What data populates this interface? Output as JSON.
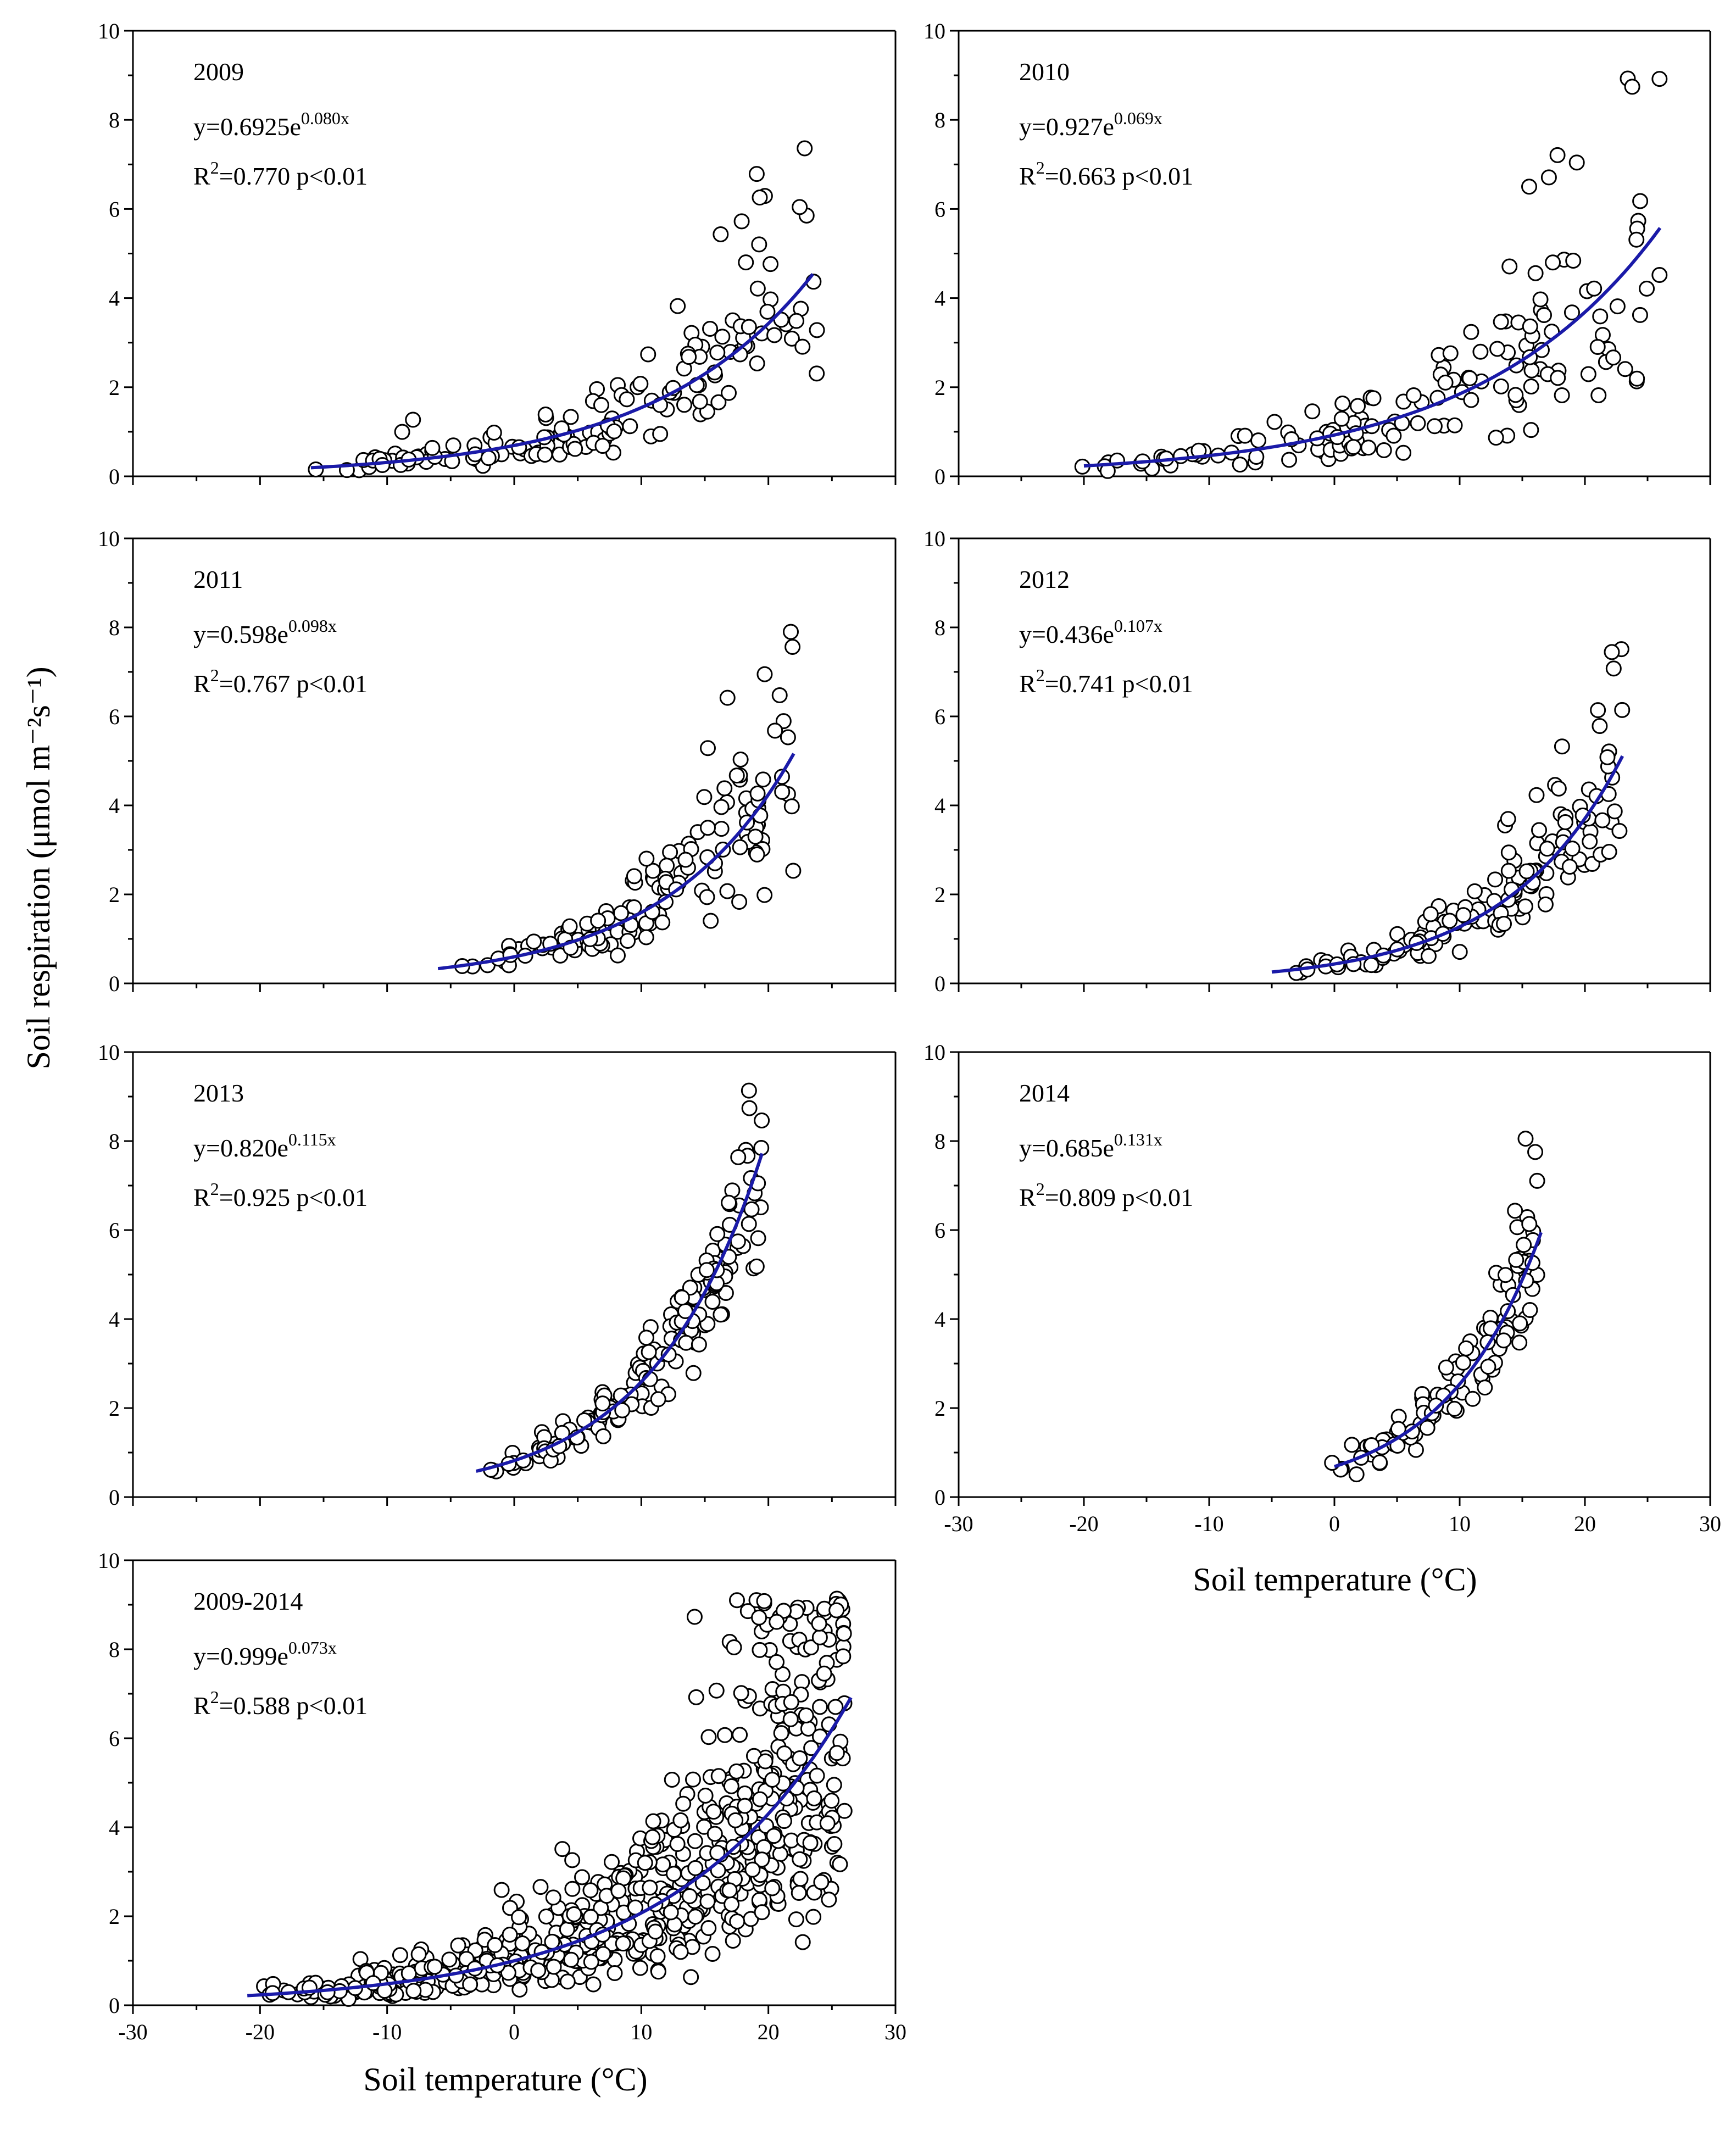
{
  "figure": {
    "ylabel": "Soil respiration (μmol m⁻²s⁻¹)",
    "xlabel_right": "Soil temperature (°C)",
    "xlabel_left": "Soil temperature  (°C)"
  },
  "chart_data": [
    {
      "type": "scatter",
      "year": "2009",
      "eq_base": "y=0.6925e",
      "eq_exp": "0.080x",
      "r2_text": "=0.770  p<0.01",
      "a": 0.6925,
      "b": 0.08,
      "xrange": [
        -16,
        23.5
      ],
      "xlim": [
        -30,
        30
      ],
      "ylim": [
        0,
        10
      ],
      "yticks": [
        "0",
        "2",
        "4",
        "6",
        "8",
        "10"
      ],
      "xticks": [
        "-30",
        "-20",
        "-10",
        "0",
        "10",
        "20",
        "30"
      ],
      "cloud": {
        "n": 150,
        "x_min": -16,
        "x_max": 24,
        "log_noise": 0.35,
        "seed": 11
      }
    },
    {
      "type": "scatter",
      "year": "2010",
      "eq_base": "y=0.927e",
      "eq_exp": "0.069x",
      "r2_text": "=0.663  p<0.01",
      "a": 0.927,
      "b": 0.069,
      "xrange": [
        -20,
        26
      ],
      "xlim": [
        -30,
        30
      ],
      "ylim": [
        0,
        10
      ],
      "yticks": [
        "0",
        "2",
        "4",
        "6",
        "8",
        "10"
      ],
      "xticks": [
        "-30",
        "-20",
        "-10",
        "0",
        "10",
        "20",
        "30"
      ],
      "cloud": {
        "n": 150,
        "x_min": -21,
        "x_max": 26,
        "log_noise": 0.38,
        "seed": 23
      }
    },
    {
      "type": "scatter",
      "year": "2011",
      "eq_base": "y=0.598e",
      "eq_exp": "0.098x",
      "r2_text": "=0.767  p<0.01",
      "a": 0.598,
      "b": 0.098,
      "xrange": [
        -6,
        22
      ],
      "xlim": [
        -30,
        30
      ],
      "ylim": [
        0,
        10
      ],
      "yticks": [
        "0",
        "2",
        "4",
        "6",
        "8",
        "10"
      ],
      "xticks": [
        "-30",
        "-20",
        "-10",
        "0",
        "10",
        "20",
        "30"
      ],
      "cloud": {
        "n": 140,
        "x_min": -6,
        "x_max": 22,
        "log_noise": 0.3,
        "seed": 37
      }
    },
    {
      "type": "scatter",
      "year": "2012",
      "eq_base": "y=0.436e",
      "eq_exp": "0.107x",
      "r2_text": "=0.741 p<0.01",
      "a": 0.436,
      "b": 0.107,
      "xrange": [
        -5,
        23
      ],
      "xlim": [
        -30,
        30
      ],
      "ylim": [
        0,
        10
      ],
      "yticks": [
        "0",
        "2",
        "4",
        "6",
        "8",
        "10"
      ],
      "xticks": [
        "-30",
        "-20",
        "-10",
        "0",
        "10",
        "20",
        "30"
      ],
      "cloud": {
        "n": 140,
        "x_min": -5,
        "x_max": 23,
        "log_noise": 0.25,
        "seed": 41
      }
    },
    {
      "type": "scatter",
      "year": "2013",
      "eq_base": "y=0.820e",
      "eq_exp": "0.115x",
      "r2_text": "=0.925  p<0.01",
      "a": 0.82,
      "b": 0.115,
      "xrange": [
        -3,
        19.5
      ],
      "xlim": [
        -30,
        30
      ],
      "ylim": [
        0,
        10
      ],
      "yticks": [
        "0",
        "2",
        "4",
        "6",
        "8",
        "10"
      ],
      "xticks": [
        "-30",
        "-20",
        "-10",
        "0",
        "10",
        "20",
        "30"
      ],
      "cloud": {
        "n": 170,
        "x_min": -3,
        "x_max": 19.5,
        "log_noise": 0.15,
        "seed": 53
      }
    },
    {
      "type": "scatter",
      "year": "2014",
      "eq_base": "y=0.685e",
      "eq_exp": "0.131x",
      "r2_text": "=0.809  p<0.01",
      "a": 0.685,
      "b": 0.131,
      "xrange": [
        0,
        16.5
      ],
      "xlim": [
        -30,
        30
      ],
      "ylim": [
        0,
        10
      ],
      "yticks": [
        "0",
        "2",
        "4",
        "6",
        "8",
        "10"
      ],
      "xticks": [
        "-30",
        "-20",
        "-10",
        "0",
        "10",
        "20",
        "30"
      ],
      "cloud": {
        "n": 110,
        "x_min": -0.2,
        "x_max": 16.3,
        "log_noise": 0.18,
        "seed": 67
      }
    },
    {
      "type": "scatter",
      "year": "2009-2014",
      "eq_base": "y=0.999e",
      "eq_exp": "0.073x",
      "r2_text": "=0.588  p<0.01",
      "a": 0.999,
      "b": 0.073,
      "xrange": [
        -21,
        26.5
      ],
      "xlim": [
        -30,
        30
      ],
      "ylim": [
        0,
        10
      ],
      "yticks": [
        "0",
        "2",
        "4",
        "6",
        "8",
        "10"
      ],
      "xticks": [
        "-30",
        "-20",
        "-10",
        "0",
        "10",
        "20",
        "30"
      ],
      "cloud": {
        "n": 700,
        "x_min": -21,
        "x_max": 26,
        "log_noise": 0.42,
        "seed": 79
      }
    }
  ]
}
